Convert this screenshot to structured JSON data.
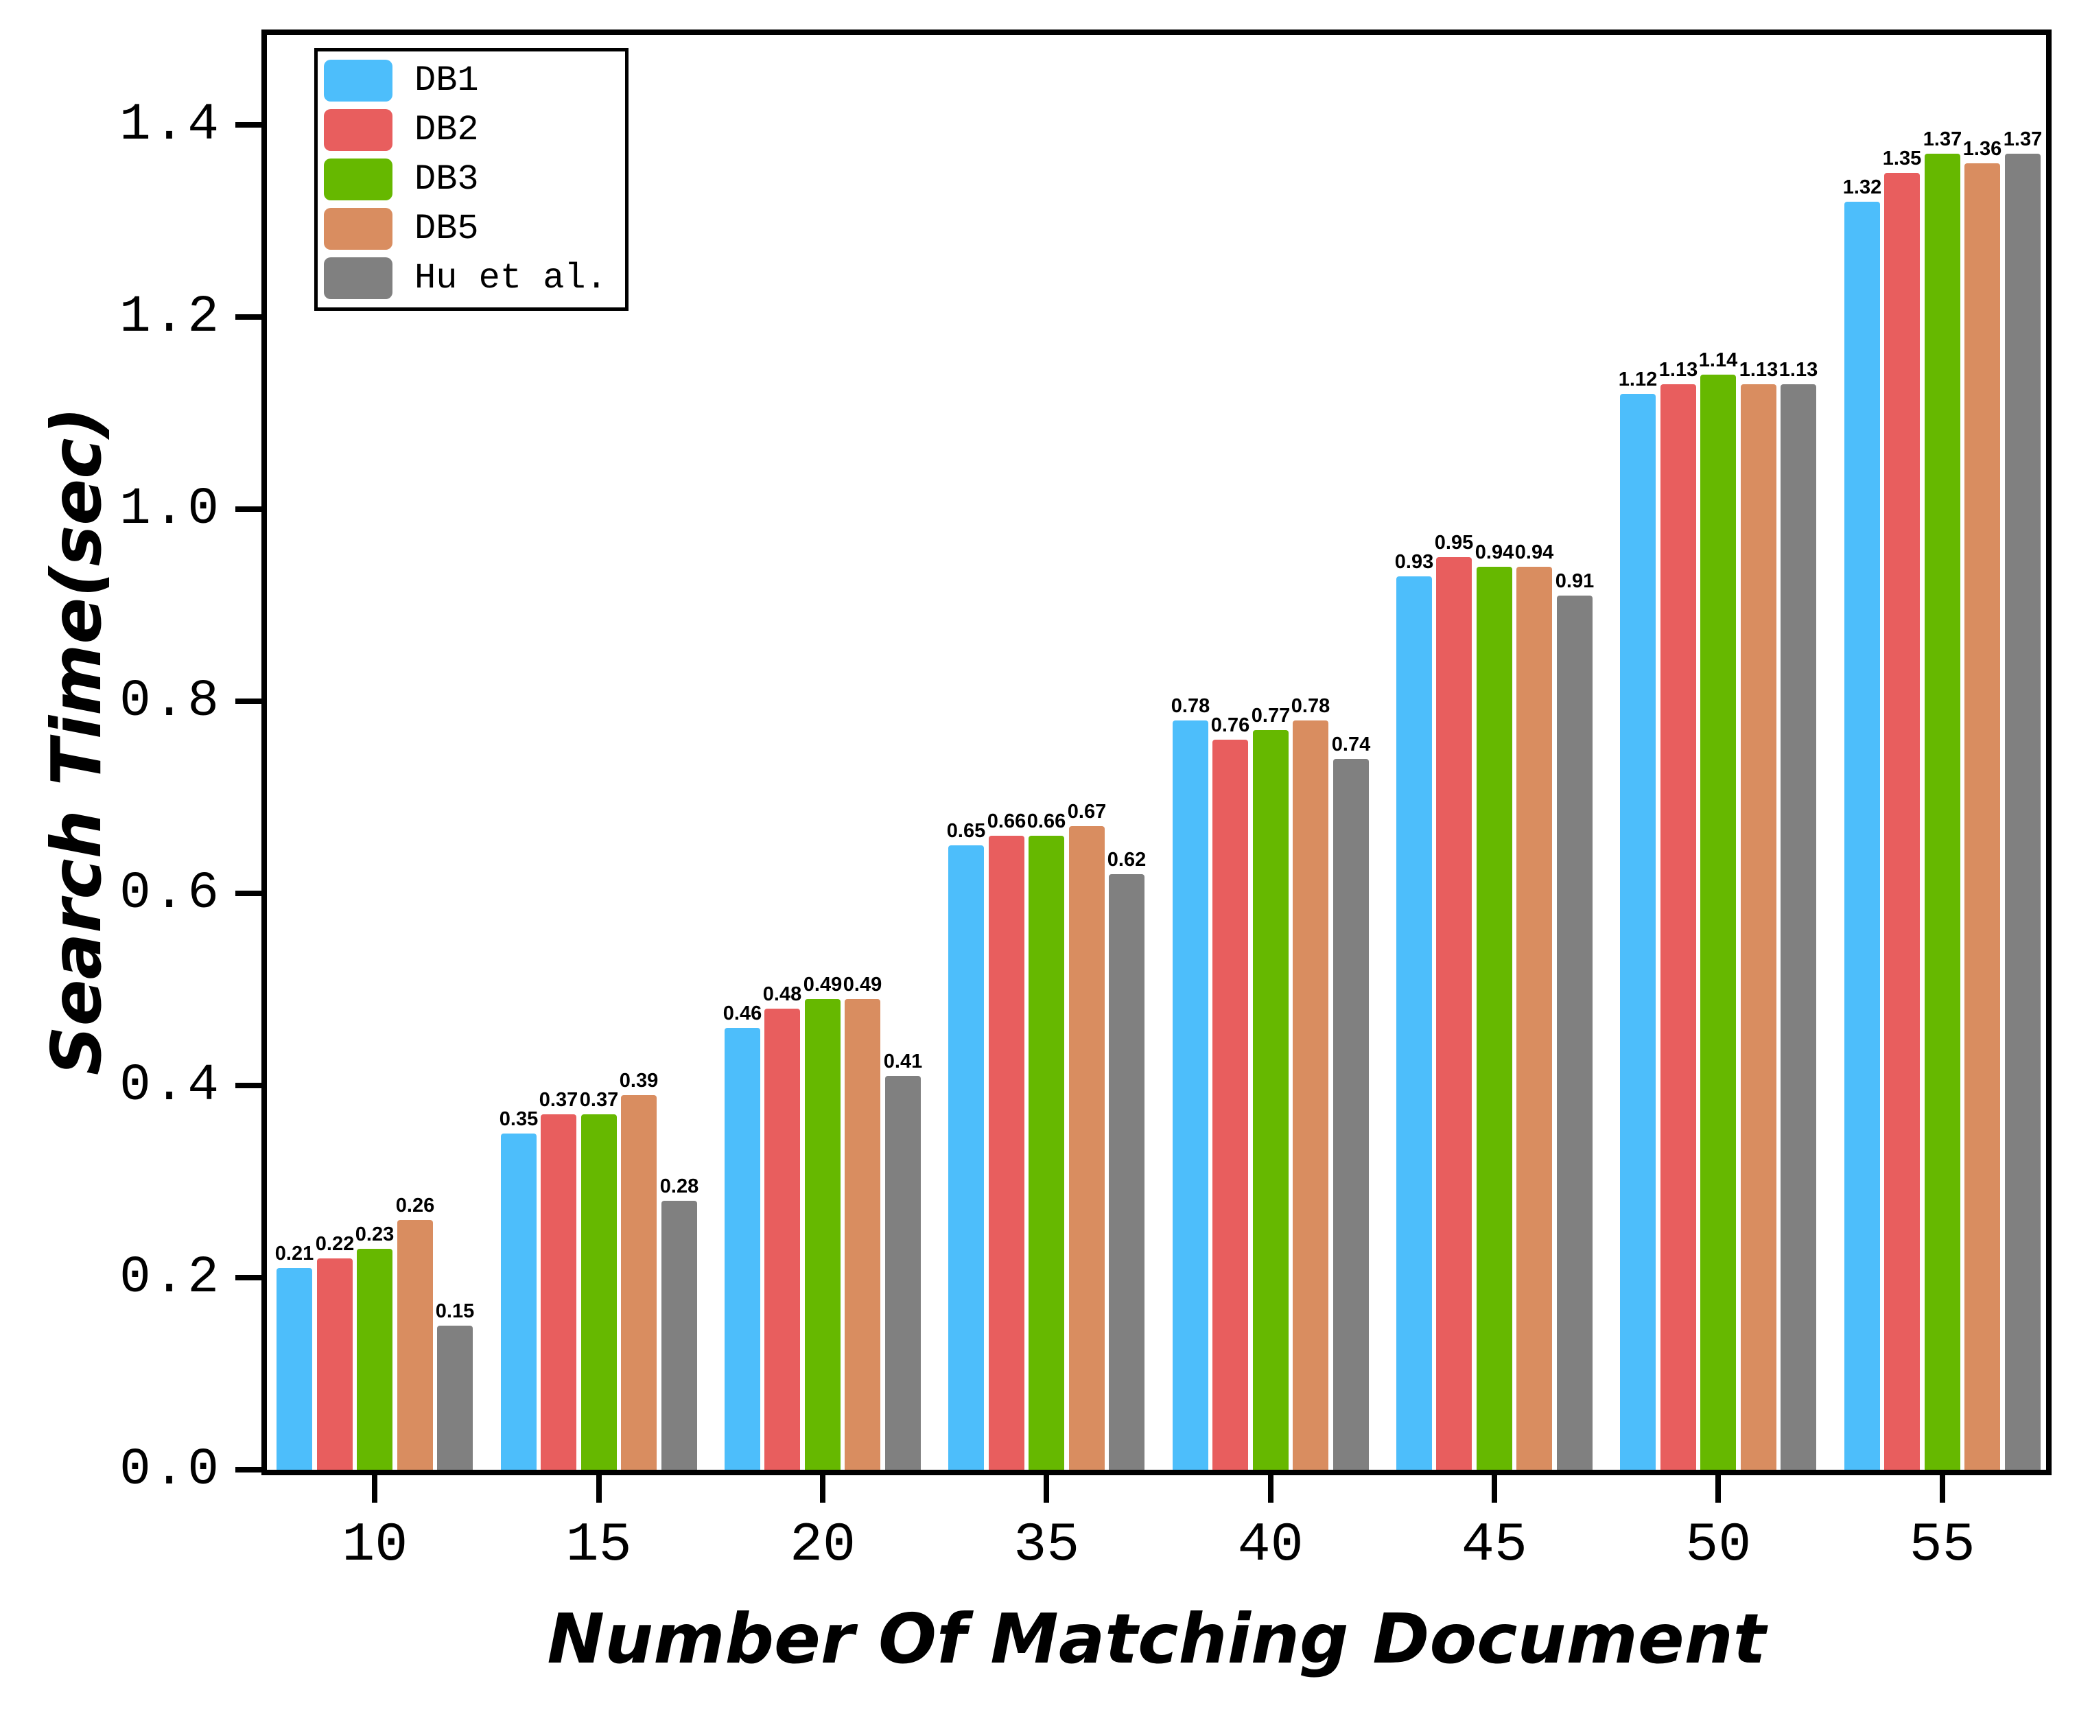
{
  "chart_data": {
    "type": "bar",
    "title": "",
    "xlabel": "Number Of Matching Document",
    "ylabel": "Search Time(sec)",
    "categories": [
      "10",
      "15",
      "20",
      "35",
      "40",
      "45",
      "50",
      "55"
    ],
    "series": [
      {
        "name": "DB1",
        "color": "#4DBEFB",
        "values": [
          0.21,
          0.35,
          0.46,
          0.65,
          0.78,
          0.93,
          1.12,
          1.32
        ]
      },
      {
        "name": "DB2",
        "color": "#E85E5E",
        "values": [
          0.22,
          0.37,
          0.48,
          0.66,
          0.76,
          0.95,
          1.13,
          1.35
        ]
      },
      {
        "name": "DB3",
        "color": "#66B800",
        "values": [
          0.23,
          0.37,
          0.49,
          0.66,
          0.77,
          0.94,
          1.14,
          1.37
        ]
      },
      {
        "name": "DB5",
        "color": "#D98D60",
        "values": [
          0.26,
          0.39,
          0.49,
          0.67,
          0.78,
          0.94,
          1.13,
          1.36
        ]
      },
      {
        "name": "Hu et al.",
        "color": "#808080",
        "values": [
          0.15,
          0.28,
          0.41,
          0.62,
          0.74,
          0.91,
          1.13,
          1.37
        ]
      }
    ],
    "yticks": [
      "0.0",
      "0.2",
      "0.4",
      "0.6",
      "0.8",
      "1.0",
      "1.2",
      "1.4"
    ],
    "ylim": [
      0,
      1.5
    ],
    "grid": false,
    "legend_position": "upper-left",
    "bar_labels_shown": true,
    "frame": "full-box",
    "axis_color": "#000000",
    "background_color": "#ffffff"
  }
}
